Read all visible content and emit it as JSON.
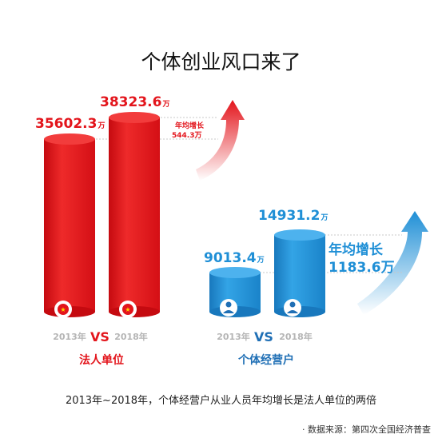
{
  "title": "个体创业风口来了",
  "footnote": "2013年~2018年，个体经营户从业人员年均增长是法人单位的两倍",
  "source": "· 数据来源：第四次全国经济普查",
  "colors": {
    "legal_entity": "#e3141b",
    "individual": "#1f8fd6",
    "vs_red": "#e3141b",
    "vs_blue": "#1f6fb5",
    "year_text": "#b5b5b5"
  },
  "icons": {
    "legal_entity": "emblem-icon",
    "individual": "person-icon"
  },
  "chart_data": [
    {
      "type": "bar",
      "group_label": "法人单位",
      "vs_label": "VS",
      "categories": [
        "2013年",
        "2018年"
      ],
      "values": [
        35602.3,
        38323.6
      ],
      "value_labels": [
        "35602.3",
        "38323.6"
      ],
      "unit": "万",
      "growth_label": "年均增长",
      "growth_value": "544.3万"
    },
    {
      "type": "bar",
      "group_label": "个体经营户",
      "vs_label": "VS",
      "categories": [
        "2013年",
        "2018年"
      ],
      "values": [
        9013.4,
        14931.2
      ],
      "value_labels": [
        "9013.4",
        "14931.2"
      ],
      "unit": "万",
      "growth_label": "年均增长",
      "growth_value": "1183.6万"
    }
  ]
}
